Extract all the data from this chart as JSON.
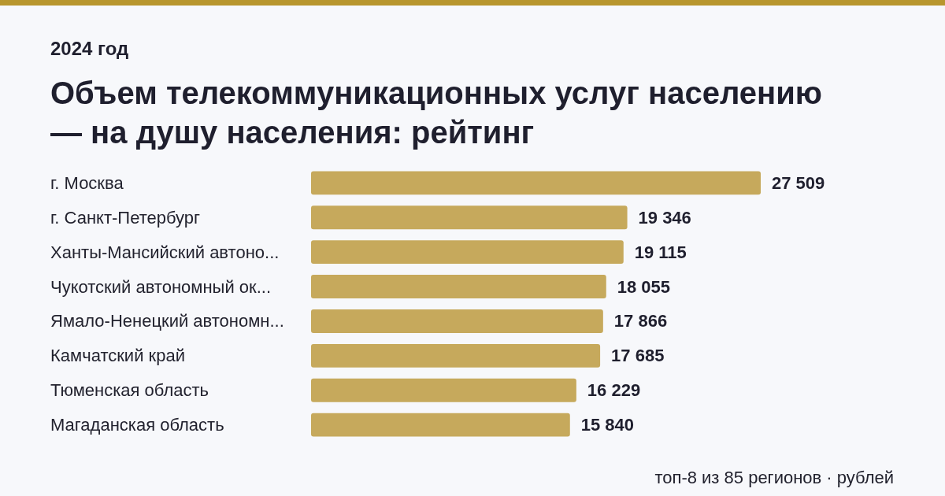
{
  "chart_data": {
    "type": "bar",
    "orientation": "horizontal",
    "title": "Объем телекоммуникационных услуг населению — на душу населения: рейтинг",
    "subtitle": "2024 год",
    "categories": [
      "г. Москва",
      "г. Санкт-Петербург",
      "Ханты-Мансийский автоно...",
      "Чукотский автономный ок...",
      "Ямало-Ненецкий автономн...",
      "Камчатский край",
      "Тюменская область",
      "Магаданская область"
    ],
    "values": [
      27509,
      19346,
      19115,
      18055,
      17866,
      17685,
      16229,
      15840
    ],
    "color": "#c6a95c",
    "data_labels": true,
    "annotations": [
      "топ-8 из 85 регионов · рублей"
    ]
  }
}
